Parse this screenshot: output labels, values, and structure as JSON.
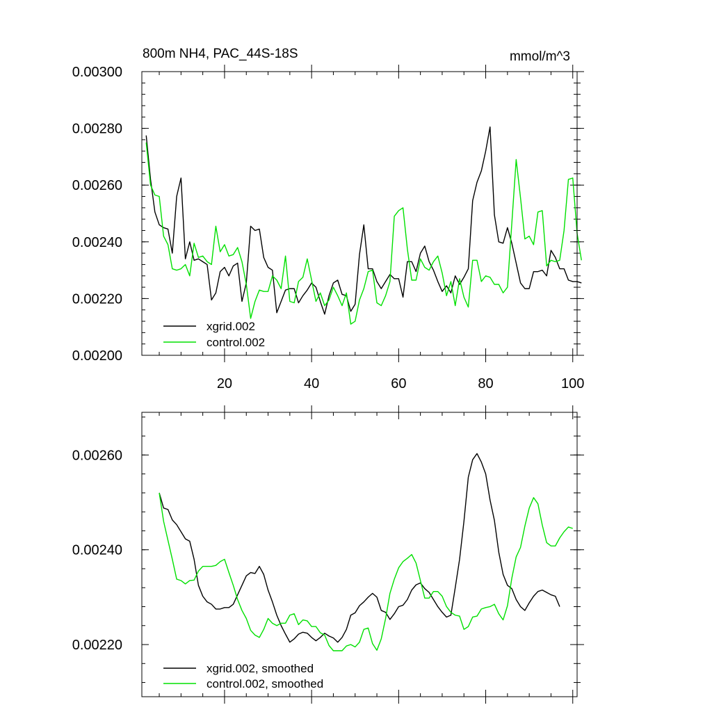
{
  "chart_data": [
    {
      "type": "line",
      "title_left": "800m NH4, PAC_44S-18S",
      "title_right": "mmol/m^3",
      "xlim": [
        1,
        101
      ],
      "ylim": [
        0.002,
        0.003
      ],
      "x_major_ticks": [
        20,
        40,
        60,
        80,
        100
      ],
      "x_tick_labels": [
        "20",
        "40",
        "60",
        "80",
        "100"
      ],
      "y_major_ticks": [
        0.002,
        0.0022,
        0.0024,
        0.0026,
        0.0028,
        0.003
      ],
      "y_tick_labels": [
        "0.00200",
        "0.00220",
        "0.00240",
        "0.00260",
        "0.00280",
        "0.00300"
      ],
      "x_start": 2,
      "series": [
        {
          "name": "xgrid.002",
          "color": "#000000",
          "values": [
            0.002775,
            0.00262,
            0.002505,
            0.00246,
            0.00245,
            0.002445,
            0.00236,
            0.00256,
            0.002625,
            0.00234,
            0.0024,
            0.002335,
            0.00234,
            0.00233,
            0.00232,
            0.002195,
            0.00222,
            0.002295,
            0.00231,
            0.00228,
            0.002315,
            0.002325,
            0.00219,
            0.002255,
            0.002455,
            0.00244,
            0.002445,
            0.002345,
            0.00231,
            0.0023,
            0.00215,
            0.00219,
            0.00223,
            0.002235,
            0.002235,
            0.002185,
            0.00221,
            0.00223,
            0.002255,
            0.00224,
            0.00219,
            0.002145,
            0.00221,
            0.002255,
            0.002265,
            0.002215,
            0.00221,
            0.002155,
            0.00218,
            0.002355,
            0.00246,
            0.002305,
            0.002305,
            0.00226,
            0.002235,
            0.00226,
            0.002285,
            0.00227,
            0.00227,
            0.002205,
            0.00233,
            0.00233,
            0.002295,
            0.00236,
            0.002385,
            0.00233,
            0.0023,
            0.00226,
            0.002225,
            0.002245,
            0.00222,
            0.00228,
            0.00225,
            0.002275,
            0.002305,
            0.002545,
            0.00261,
            0.00265,
            0.00272,
            0.002805,
            0.002495,
            0.0024,
            0.002395,
            0.00245,
            0.002395,
            0.002325,
            0.002255,
            0.002235,
            0.002235,
            0.002295,
            0.002295,
            0.0023,
            0.00228,
            0.00237,
            0.002345,
            0.002305,
            0.002305,
            0.002265,
            0.00226,
            0.00226,
            0.002255
          ]
        },
        {
          "name": "control.002",
          "color": "#00e000",
          "values": [
            0.00275,
            0.0026,
            0.002565,
            0.00256,
            0.00242,
            0.00239,
            0.002305,
            0.0023,
            0.002305,
            0.00232,
            0.00228,
            0.002395,
            0.002345,
            0.00235,
            0.00233,
            0.00232,
            0.002455,
            0.002365,
            0.00239,
            0.00235,
            0.002355,
            0.00238,
            0.00233,
            0.00225,
            0.00213,
            0.00219,
            0.00223,
            0.002225,
            0.002225,
            0.00228,
            0.002265,
            0.002235,
            0.00235,
            0.00219,
            0.002185,
            0.00226,
            0.002275,
            0.00234,
            0.002265,
            0.00219,
            0.00222,
            0.002175,
            0.002195,
            0.00224,
            0.00221,
            0.002175,
            0.00222,
            0.00211,
            0.00212,
            0.002195,
            0.002235,
            0.002295,
            0.0023,
            0.002185,
            0.002175,
            0.00221,
            0.00226,
            0.00249,
            0.00251,
            0.00252,
            0.002375,
            0.002265,
            0.002265,
            0.00234,
            0.00231,
            0.0023,
            0.00233,
            0.00235,
            0.00229,
            0.00221,
            0.00226,
            0.002175,
            0.00227,
            0.002205,
            0.00217,
            0.002335,
            0.002335,
            0.00226,
            0.00228,
            0.002275,
            0.00225,
            0.00225,
            0.00222,
            0.00224,
            0.002465,
            0.00269,
            0.002555,
            0.00241,
            0.00242,
            0.00239,
            0.002505,
            0.00251,
            0.002315,
            0.002335,
            0.00233,
            0.002335,
            0.00244,
            0.00262,
            0.002625,
            0.00243,
            0.002335
          ]
        }
      ],
      "legend": [
        "xgrid.002",
        "control.002"
      ],
      "legend_position": "bottom-left"
    },
    {
      "type": "line",
      "xlim": [
        1,
        101
      ],
      "ylim": [
        0.00209,
        0.00269
      ],
      "x_major_ticks": [
        20,
        40,
        60,
        80,
        100
      ],
      "y_major_ticks": [
        0.0022,
        0.0024,
        0.0026
      ],
      "y_tick_labels": [
        "0.00220",
        "0.00240",
        "0.00260"
      ],
      "x_start": 5,
      "series": [
        {
          "name": "xgrid.002, smoothed",
          "color": "#000000",
          "values": [
            0.00252,
            0.002488,
            0.002485,
            0.002463,
            0.002453,
            0.002438,
            0.002423,
            0.002418,
            0.00238,
            0.002325,
            0.002302,
            0.00229,
            0.002285,
            0.002275,
            0.002275,
            0.002278,
            0.002278,
            0.002285,
            0.002305,
            0.002325,
            0.002345,
            0.002352,
            0.00235,
            0.002365,
            0.002348,
            0.002315,
            0.00229,
            0.002262,
            0.00224,
            0.002222,
            0.002205,
            0.002212,
            0.002222,
            0.002226,
            0.002224,
            0.002215,
            0.002208,
            0.002215,
            0.002224,
            0.002218,
            0.002214,
            0.002205,
            0.002215,
            0.002232,
            0.002262,
            0.002267,
            0.002282,
            0.00229,
            0.0023,
            0.002308,
            0.0023,
            0.002272,
            0.002268,
            0.002253,
            0.002265,
            0.00228,
            0.002283,
            0.002295,
            0.002315,
            0.002326,
            0.00233,
            0.002318,
            0.00231,
            0.002295,
            0.00228,
            0.002268,
            0.002258,
            0.002262,
            0.00232,
            0.00238,
            0.00246,
            0.002553,
            0.00259,
            0.002603,
            0.002585,
            0.00256,
            0.002505,
            0.002462,
            0.002395,
            0.002348,
            0.002325,
            0.002318,
            0.002295,
            0.00228,
            0.002272,
            0.002288,
            0.002302,
            0.002312,
            0.002315,
            0.00231,
            0.002305,
            0.002302,
            0.00228
          ]
        },
        {
          "name": "control.002, smoothed",
          "color": "#00e000",
          "values": [
            0.00252,
            0.00246,
            0.00242,
            0.00238,
            0.002338,
            0.002335,
            0.002328,
            0.002335,
            0.002336,
            0.002355,
            0.002365,
            0.002365,
            0.002365,
            0.002367,
            0.002375,
            0.00238,
            0.002352,
            0.002325,
            0.002295,
            0.002272,
            0.002255,
            0.00223,
            0.00222,
            0.002215,
            0.002232,
            0.002255,
            0.002245,
            0.00224,
            0.002245,
            0.002245,
            0.002262,
            0.002265,
            0.002242,
            0.002252,
            0.00225,
            0.002238,
            0.002238,
            0.002225,
            0.00222,
            0.002198,
            0.002187,
            0.002187,
            0.002187,
            0.002197,
            0.0022,
            0.002195,
            0.002205,
            0.002232,
            0.002235,
            0.002202,
            0.002188,
            0.002212,
            0.002255,
            0.002308,
            0.002338,
            0.002362,
            0.002375,
            0.002382,
            0.00239,
            0.002372,
            0.002335,
            0.002298,
            0.002298,
            0.002312,
            0.002312,
            0.002302,
            0.00228,
            0.002268,
            0.002262,
            0.00226,
            0.002232,
            0.002238,
            0.002258,
            0.00226,
            0.002275,
            0.002278,
            0.00228,
            0.002285,
            0.002265,
            0.002252,
            0.002282,
            0.00234,
            0.002385,
            0.002405,
            0.00245,
            0.002488,
            0.00251,
            0.002497,
            0.002452,
            0.002415,
            0.002408,
            0.002408,
            0.002425,
            0.002438,
            0.002448,
            0.002445
          ]
        }
      ],
      "legend": [
        "xgrid.002, smoothed",
        "control.002, smoothed"
      ],
      "legend_position": "bottom-left"
    }
  ]
}
